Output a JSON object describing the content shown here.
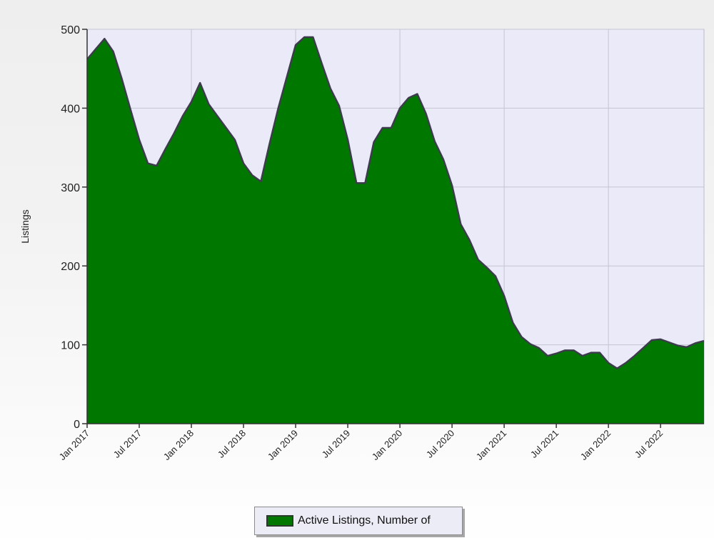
{
  "chart_data": {
    "type": "area",
    "ylabel": "Listings",
    "xlabel": "",
    "ylim": [
      0,
      500
    ],
    "yticks": [
      0,
      100,
      200,
      300,
      400,
      500
    ],
    "xticks": [
      "Jan 2017",
      "Jul 2017",
      "Jan 2018",
      "Jul 2018",
      "Jan 2019",
      "Jul 2019",
      "Jan 2020",
      "Jul 2020",
      "Jan 2021",
      "Jul 2021",
      "Jan 2022",
      "Jul 2022"
    ],
    "grid": true,
    "legend_position": "bottom-center",
    "colors": {
      "fill": "#007800",
      "line": "#3c3c4c",
      "plot_background": "#eaeaf8",
      "grid": "#c4c4d4"
    },
    "series": [
      {
        "name": "Active Listings, Number of",
        "x": [
          "2017-01",
          "2017-02",
          "2017-03",
          "2017-04",
          "2017-05",
          "2017-06",
          "2017-07",
          "2017-08",
          "2017-09",
          "2017-10",
          "2017-11",
          "2017-12",
          "2018-01",
          "2018-02",
          "2018-03",
          "2018-04",
          "2018-05",
          "2018-06",
          "2018-07",
          "2018-08",
          "2018-09",
          "2018-10",
          "2018-11",
          "2018-12",
          "2019-01",
          "2019-02",
          "2019-03",
          "2019-04",
          "2019-05",
          "2019-06",
          "2019-07",
          "2019-08",
          "2019-09",
          "2019-10",
          "2019-11",
          "2019-12",
          "2020-01",
          "2020-02",
          "2020-03",
          "2020-04",
          "2020-05",
          "2020-06",
          "2020-07",
          "2020-08",
          "2020-09",
          "2020-10",
          "2020-11",
          "2020-12",
          "2021-01",
          "2021-02",
          "2021-03",
          "2021-04",
          "2021-05",
          "2021-06",
          "2021-07",
          "2021-08",
          "2021-09",
          "2021-10",
          "2021-11",
          "2021-12",
          "2022-01",
          "2022-02",
          "2022-03",
          "2022-04",
          "2022-05",
          "2022-06",
          "2022-07",
          "2022-08",
          "2022-09",
          "2022-10",
          "2022-11",
          "2022-12"
        ],
        "values": [
          462,
          475,
          488,
          472,
          437,
          398,
          360,
          330,
          327,
          348,
          368,
          390,
          408,
          432,
          405,
          390,
          375,
          360,
          330,
          315,
          307,
          355,
          400,
          440,
          480,
          490,
          490,
          457,
          425,
          403,
          360,
          305,
          305,
          357,
          375,
          375,
          400,
          413,
          418,
          393,
          358,
          335,
          302,
          253,
          233,
          208,
          198,
          187,
          162,
          128,
          110,
          101,
          96,
          86,
          89,
          93,
          93,
          86,
          90,
          90,
          77,
          70,
          77,
          86,
          96,
          106,
          107,
          103,
          99,
          97,
          102,
          105
        ]
      }
    ]
  }
}
